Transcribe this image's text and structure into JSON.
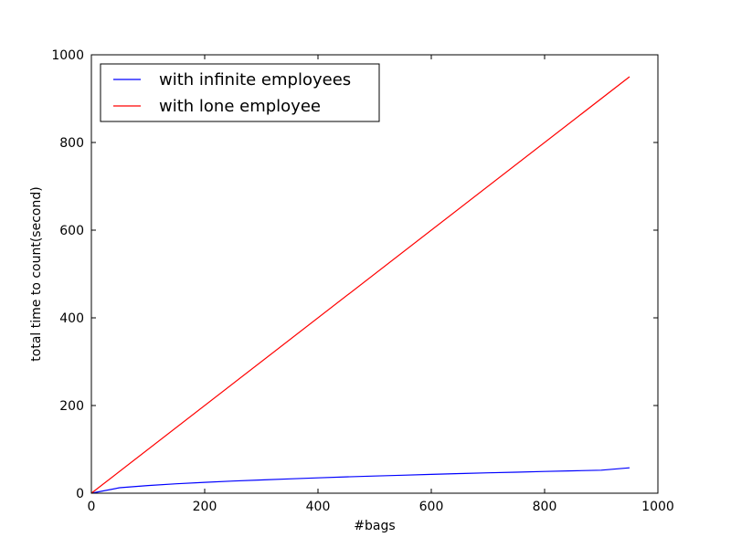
{
  "chart_data": {
    "type": "line",
    "title": "",
    "xlabel": "#bags",
    "ylabel": "total time to count(second)",
    "xlim": [
      0,
      1000
    ],
    "ylim": [
      0,
      1000
    ],
    "xticks": [
      0,
      200,
      400,
      600,
      800,
      1000
    ],
    "yticks": [
      0,
      200,
      400,
      600,
      800,
      1000
    ],
    "grid": false,
    "legend_position": "top-left",
    "series": [
      {
        "name": "with infinite employees",
        "color": "#0000ff",
        "x": [
          0,
          50,
          100,
          150,
          200,
          250,
          300,
          350,
          400,
          450,
          500,
          550,
          600,
          650,
          700,
          750,
          800,
          850,
          900,
          950
        ],
        "y": [
          0,
          12.4,
          17.5,
          21.4,
          24.8,
          27.7,
          30.3,
          32.8,
          35.0,
          37.2,
          39.1,
          41.1,
          42.9,
          44.7,
          46.4,
          48.0,
          49.6,
          51.1,
          52.6,
          58
        ]
      },
      {
        "name": "with lone employee",
        "color": "#ff0000",
        "x": [
          0,
          950
        ],
        "y": [
          0,
          950
        ]
      }
    ]
  }
}
